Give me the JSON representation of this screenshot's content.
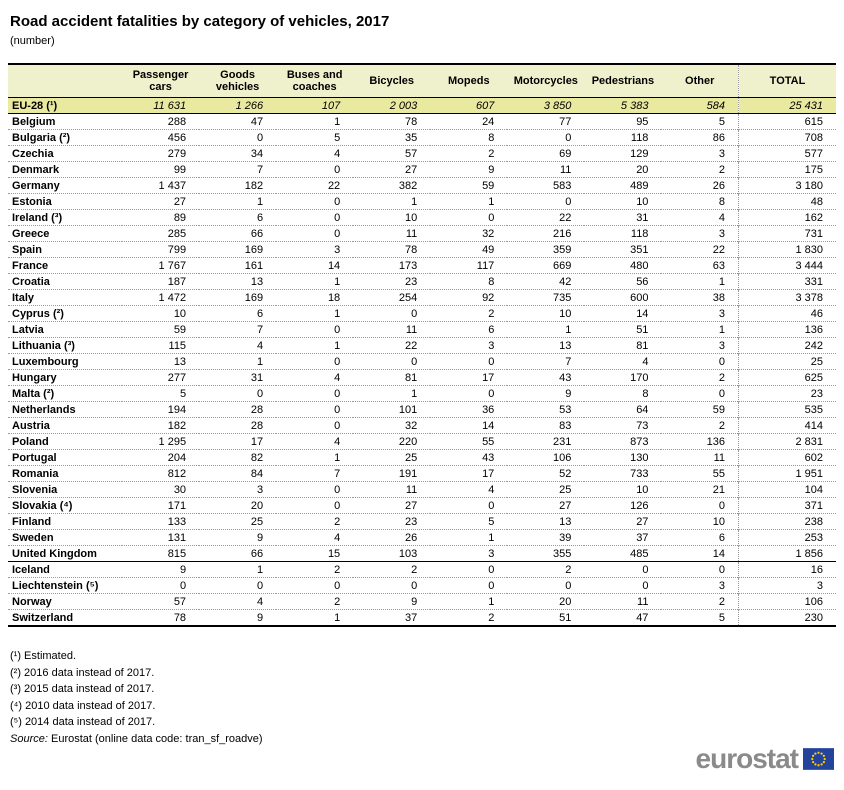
{
  "title": "Road accident fatalities by category of vehicles, 2017",
  "subtitle": "(number)",
  "table": {
    "columns": [
      "",
      "Passenger cars",
      "Goods vehicles",
      "Buses and coaches",
      "Bicycles",
      "Mopeds",
      "Motorcycles",
      "Pedestrians",
      "Other",
      "TOTAL"
    ],
    "eu_row": {
      "label": "EU-28 (¹)",
      "values": [
        "11 631",
        "1 266",
        "107",
        "2 003",
        "607",
        "3 850",
        "5 383",
        "584",
        "25 431"
      ]
    },
    "rows": [
      {
        "label": "Belgium",
        "group": "eu",
        "values": [
          "288",
          "47",
          "1",
          "78",
          "24",
          "77",
          "95",
          "5",
          "615"
        ]
      },
      {
        "label": "Bulgaria (²)",
        "group": "eu",
        "values": [
          "456",
          "0",
          "5",
          "35",
          "8",
          "0",
          "118",
          "86",
          "708"
        ]
      },
      {
        "label": "Czechia",
        "group": "eu",
        "values": [
          "279",
          "34",
          "4",
          "57",
          "2",
          "69",
          "129",
          "3",
          "577"
        ]
      },
      {
        "label": "Denmark",
        "group": "eu",
        "values": [
          "99",
          "7",
          "0",
          "27",
          "9",
          "11",
          "20",
          "2",
          "175"
        ]
      },
      {
        "label": "Germany",
        "group": "eu",
        "values": [
          "1 437",
          "182",
          "22",
          "382",
          "59",
          "583",
          "489",
          "26",
          "3 180"
        ]
      },
      {
        "label": "Estonia",
        "group": "eu",
        "values": [
          "27",
          "1",
          "0",
          "1",
          "1",
          "0",
          "10",
          "8",
          "48"
        ]
      },
      {
        "label": "Ireland (³)",
        "group": "eu",
        "values": [
          "89",
          "6",
          "0",
          "10",
          "0",
          "22",
          "31",
          "4",
          "162"
        ]
      },
      {
        "label": "Greece",
        "group": "eu",
        "values": [
          "285",
          "66",
          "0",
          "11",
          "32",
          "216",
          "118",
          "3",
          "731"
        ]
      },
      {
        "label": "Spain",
        "group": "eu",
        "values": [
          "799",
          "169",
          "3",
          "78",
          "49",
          "359",
          "351",
          "22",
          "1 830"
        ]
      },
      {
        "label": "France",
        "group": "eu",
        "values": [
          "1 767",
          "161",
          "14",
          "173",
          "117",
          "669",
          "480",
          "63",
          "3 444"
        ]
      },
      {
        "label": "Croatia",
        "group": "eu",
        "values": [
          "187",
          "13",
          "1",
          "23",
          "8",
          "42",
          "56",
          "1",
          "331"
        ]
      },
      {
        "label": "Italy",
        "group": "eu",
        "values": [
          "1 472",
          "169",
          "18",
          "254",
          "92",
          "735",
          "600",
          "38",
          "3 378"
        ]
      },
      {
        "label": "Cyprus (²)",
        "group": "eu",
        "values": [
          "10",
          "6",
          "1",
          "0",
          "2",
          "10",
          "14",
          "3",
          "46"
        ]
      },
      {
        "label": "Latvia",
        "group": "eu",
        "values": [
          "59",
          "7",
          "0",
          "11",
          "6",
          "1",
          "51",
          "1",
          "136"
        ]
      },
      {
        "label": "Lithuania (³)",
        "group": "eu",
        "values": [
          "115",
          "4",
          "1",
          "22",
          "3",
          "13",
          "81",
          "3",
          "242"
        ]
      },
      {
        "label": "Luxembourg",
        "group": "eu",
        "values": [
          "13",
          "1",
          "0",
          "0",
          "0",
          "7",
          "4",
          "0",
          "25"
        ]
      },
      {
        "label": "Hungary",
        "group": "eu",
        "values": [
          "277",
          "31",
          "4",
          "81",
          "17",
          "43",
          "170",
          "2",
          "625"
        ]
      },
      {
        "label": "Malta (²)",
        "group": "eu",
        "values": [
          "5",
          "0",
          "0",
          "1",
          "0",
          "9",
          "8",
          "0",
          "23"
        ]
      },
      {
        "label": "Netherlands",
        "group": "eu",
        "values": [
          "194",
          "28",
          "0",
          "101",
          "36",
          "53",
          "64",
          "59",
          "535"
        ]
      },
      {
        "label": "Austria",
        "group": "eu",
        "values": [
          "182",
          "28",
          "0",
          "32",
          "14",
          "83",
          "73",
          "2",
          "414"
        ]
      },
      {
        "label": "Poland",
        "group": "eu",
        "values": [
          "1 295",
          "17",
          "4",
          "220",
          "55",
          "231",
          "873",
          "136",
          "2 831"
        ]
      },
      {
        "label": "Portugal",
        "group": "eu",
        "values": [
          "204",
          "82",
          "1",
          "25",
          "43",
          "106",
          "130",
          "11",
          "602"
        ]
      },
      {
        "label": "Romania",
        "group": "eu",
        "values": [
          "812",
          "84",
          "7",
          "191",
          "17",
          "52",
          "733",
          "55",
          "1 951"
        ]
      },
      {
        "label": "Slovenia",
        "group": "eu",
        "values": [
          "30",
          "3",
          "0",
          "11",
          "4",
          "25",
          "10",
          "21",
          "104"
        ]
      },
      {
        "label": "Slovakia (⁴)",
        "group": "eu",
        "values": [
          "171",
          "20",
          "0",
          "27",
          "0",
          "27",
          "126",
          "0",
          "371"
        ]
      },
      {
        "label": "Finland",
        "group": "eu",
        "values": [
          "133",
          "25",
          "2",
          "23",
          "5",
          "13",
          "27",
          "10",
          "238"
        ]
      },
      {
        "label": "Sweden",
        "group": "eu",
        "values": [
          "131",
          "9",
          "4",
          "26",
          "1",
          "39",
          "37",
          "6",
          "253"
        ]
      },
      {
        "label": "United Kingdom",
        "group": "eu",
        "values": [
          "815",
          "66",
          "15",
          "103",
          "3",
          "355",
          "485",
          "14",
          "1 856"
        ]
      },
      {
        "label": "Iceland",
        "group": "efta",
        "values": [
          "9",
          "1",
          "2",
          "2",
          "0",
          "2",
          "0",
          "0",
          "16"
        ]
      },
      {
        "label": "Liechtenstein (⁵)",
        "group": "efta",
        "values": [
          "0",
          "0",
          "0",
          "0",
          "0",
          "0",
          "0",
          "3",
          "3"
        ]
      },
      {
        "label": "Norway",
        "group": "efta",
        "values": [
          "57",
          "4",
          "2",
          "9",
          "1",
          "20",
          "11",
          "2",
          "106"
        ]
      },
      {
        "label": "Switzerland",
        "group": "efta",
        "values": [
          "78",
          "9",
          "1",
          "37",
          "2",
          "51",
          "47",
          "5",
          "230"
        ]
      }
    ]
  },
  "footnotes": [
    "(¹) Estimated.",
    "(²) 2016 data instead of 2017.",
    "(³) 2015 data instead of 2017.",
    "(⁴) 2010 data instead of 2017.",
    "(⁵) 2014 data instead of 2017."
  ],
  "source": {
    "label": "Source:",
    "text": "Eurostat (online data code: tran_sf_roadve)"
  },
  "logo": {
    "text": "eurostat",
    "text_color": "#8a8a8a",
    "flag_color": "#24439a",
    "star_color": "#ffcc00"
  },
  "colors": {
    "header_bg": "#eff1cd",
    "eu_row_bg": "#e9e9a0",
    "solid_border": "#000000",
    "dotted_border": "#9a9a9a"
  }
}
